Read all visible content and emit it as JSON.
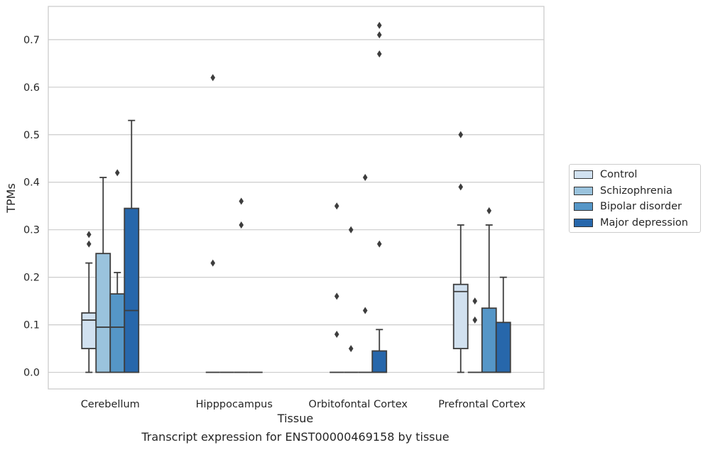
{
  "chart_data": {
    "type": "boxplot",
    "xlabel": "Tissue",
    "ylabel": "TPMs",
    "caption": "Transcript expression for ENST00000469158 by tissue",
    "ylim": [
      -0.035,
      0.77
    ],
    "yticks": [
      "0.0",
      "0.1",
      "0.2",
      "0.3",
      "0.4",
      "0.5",
      "0.6",
      "0.7"
    ],
    "grid": "horizontal",
    "legend_position": "right-outside",
    "categories": [
      "Cerebellum",
      "Hipppocampus",
      "Orbitofontal Cortex",
      "Prefrontal Cortex"
    ],
    "series": [
      {
        "name": "Control",
        "color": "#d1e1f0",
        "boxes": [
          {
            "whislo": 0.0,
            "q1": 0.05,
            "med": 0.11,
            "q3": 0.125,
            "whishi": 0.23,
            "fliers": [
              0.27,
              0.29
            ]
          },
          {
            "whislo": 0.0,
            "q1": 0.0,
            "med": 0.0,
            "q3": 0.0,
            "whishi": 0.0,
            "fliers": [
              0.23,
              0.62
            ]
          },
          {
            "whislo": 0.0,
            "q1": 0.0,
            "med": 0.0,
            "q3": 0.0,
            "whishi": 0.0,
            "fliers": [
              0.08,
              0.16,
              0.35
            ]
          },
          {
            "whislo": 0.0,
            "q1": 0.05,
            "med": 0.17,
            "q3": 0.185,
            "whishi": 0.31,
            "fliers": [
              0.39,
              0.5
            ]
          }
        ]
      },
      {
        "name": "Schizophrenia",
        "color": "#9ac3dd",
        "boxes": [
          {
            "whislo": 0.0,
            "q1": 0.0,
            "med": 0.095,
            "q3": 0.25,
            "whishi": 0.41,
            "fliers": []
          },
          {
            "whislo": 0.0,
            "q1": 0.0,
            "med": 0.0,
            "q3": 0.0,
            "whishi": 0.0,
            "fliers": []
          },
          {
            "whislo": 0.0,
            "q1": 0.0,
            "med": 0.0,
            "q3": 0.0,
            "whishi": 0.0,
            "fliers": [
              0.05,
              0.3
            ]
          },
          {
            "whislo": 0.0,
            "q1": 0.0,
            "med": 0.0,
            "q3": 0.0,
            "whishi": 0.0,
            "fliers": [
              0.11,
              0.15
            ]
          }
        ]
      },
      {
        "name": "Bipolar disorder",
        "color": "#5596c7",
        "boxes": [
          {
            "whislo": 0.0,
            "q1": 0.0,
            "med": 0.095,
            "q3": 0.165,
            "whishi": 0.21,
            "fliers": [
              0.42
            ]
          },
          {
            "whislo": 0.0,
            "q1": 0.0,
            "med": 0.0,
            "q3": 0.0,
            "whishi": 0.0,
            "fliers": [
              0.31,
              0.36
            ]
          },
          {
            "whislo": 0.0,
            "q1": 0.0,
            "med": 0.0,
            "q3": 0.0,
            "whishi": 0.0,
            "fliers": [
              0.13,
              0.41
            ]
          },
          {
            "whislo": 0.0,
            "q1": 0.0,
            "med": 0.0,
            "q3": 0.135,
            "whishi": 0.31,
            "fliers": [
              0.34
            ]
          }
        ]
      },
      {
        "name": "Major depression",
        "color": "#2767ab",
        "boxes": [
          {
            "whislo": 0.0,
            "q1": 0.0,
            "med": 0.13,
            "q3": 0.345,
            "whishi": 0.53,
            "fliers": []
          },
          {
            "whislo": 0.0,
            "q1": 0.0,
            "med": 0.0,
            "q3": 0.0,
            "whishi": 0.0,
            "fliers": []
          },
          {
            "whislo": 0.0,
            "q1": 0.0,
            "med": 0.0,
            "q3": 0.045,
            "whishi": 0.09,
            "fliers": [
              0.27,
              0.67,
              0.71,
              0.73
            ]
          },
          {
            "whislo": 0.0,
            "q1": 0.0,
            "med": 0.0,
            "q3": 0.105,
            "whishi": 0.2,
            "fliers": []
          }
        ]
      }
    ]
  }
}
